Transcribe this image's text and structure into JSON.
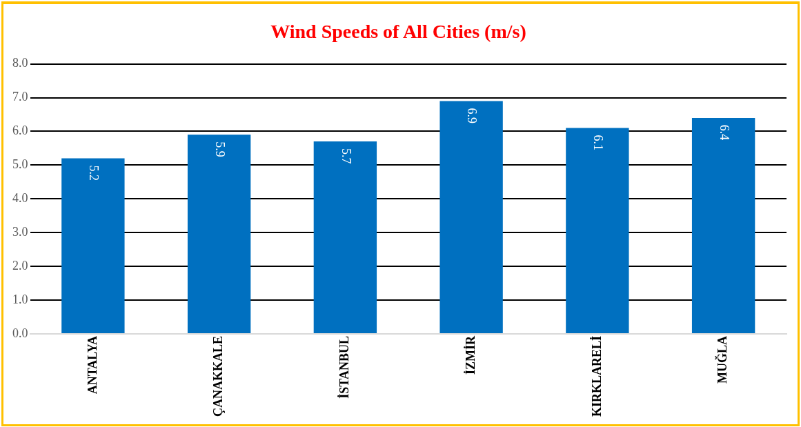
{
  "chart_data": {
    "type": "bar",
    "title": "Wind Speeds of All Cities (m/s)",
    "categories": [
      "ANTALYA",
      "ÇANAKKALE",
      "İSTANBUL",
      "İZMİR",
      "KIRKLARELİ",
      "MUĞLA"
    ],
    "values": [
      5.2,
      5.9,
      5.7,
      6.9,
      6.1,
      6.4
    ],
    "color": "#0070c0",
    "ylim": [
      0,
      8
    ],
    "yticks": [
      {
        "value": 0,
        "label": "0.0"
      },
      {
        "value": 1,
        "label": "1.0"
      },
      {
        "value": 2,
        "label": "2.0"
      },
      {
        "value": 3,
        "label": "3.0"
      },
      {
        "value": 4,
        "label": "4.0"
      },
      {
        "value": 5,
        "label": "5.0"
      },
      {
        "value": 6,
        "label": "6.0"
      },
      {
        "value": 7,
        "label": "7.0"
      },
      {
        "value": 8,
        "label": "8.0"
      }
    ],
    "grid": "y",
    "legend": false,
    "data_labels": true
  }
}
